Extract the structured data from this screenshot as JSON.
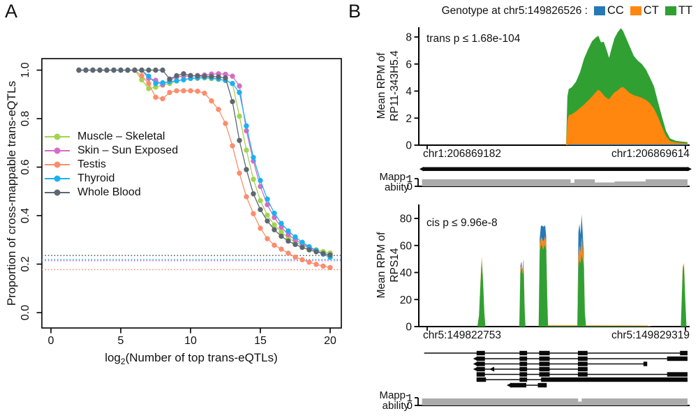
{
  "colors": {
    "muscle": "#a3d44b",
    "skin": "#d56cc6",
    "testis": "#fb8d6d",
    "thyroid": "#1bb1f1",
    "whole_blood": "#5d6770",
    "cc": "#2779b5",
    "ct": "#ff870f",
    "tt": "#30a033",
    "mappability": "#ababab",
    "axis": "#000000"
  },
  "panel_a": {
    "label": "A",
    "ylabel": "Proportion of cross-mappable trans-eQTLs",
    "xlabel": {
      "prefix": "log",
      "sub": "2",
      "suffix": "(Number of top trans-eQTLs)"
    },
    "xticks": [
      "0",
      "5",
      "10",
      "15",
      "20"
    ],
    "yticks": [
      "0.0",
      "0.2",
      "0.4",
      "0.6",
      "0.8",
      "1.0"
    ],
    "legend": [
      {
        "key": "muscle",
        "label": "Muscle – Skeletal"
      },
      {
        "key": "skin",
        "label": "Skin – Sun Exposed"
      },
      {
        "key": "testis",
        "label": "Testis"
      },
      {
        "key": "thyroid",
        "label": "Thyroid"
      },
      {
        "key": "whole_blood",
        "label": "Whole Blood"
      }
    ]
  },
  "panel_b": {
    "label": "B",
    "genotype_legend": {
      "title": "Genotype at chr5:149826526 :",
      "items": [
        {
          "key": "cc",
          "label": "CC"
        },
        {
          "key": "ct",
          "label": "CT"
        },
        {
          "key": "tt",
          "label": "TT"
        }
      ]
    },
    "trans": {
      "annotation": "trans p ≤ 1.68e-104",
      "ylabel": [
        "Mean RPM of",
        "RP11-343H5.4"
      ],
      "yticks": [
        "0",
        "2",
        "4",
        "6",
        "8"
      ],
      "region_start": "chr1:206869182",
      "region_end": "chr1:206869614"
    },
    "mapp1": {
      "label": [
        "Mapp-",
        "abiity"
      ],
      "ticks": [
        "1",
        "0"
      ]
    },
    "cis": {
      "annotation": "cis p ≤ 9.96e-8",
      "ylabel": [
        "Mean RPM of",
        "RPS14"
      ],
      "yticks": [
        "0",
        "20",
        "40",
        "60",
        "80"
      ],
      "region_start": "chr5:149822753",
      "region_end": "chr5:149829319"
    },
    "mapp2": {
      "label": [
        "Mapp-",
        "ability"
      ],
      "ticks": [
        "1",
        "0"
      ]
    }
  },
  "chart_data": [
    {
      "type": "line",
      "panel": "A",
      "title": "",
      "xlabel": "log2(Number of top trans-eQTLs)",
      "ylabel": "Proportion of cross-mappable trans-eQTLs",
      "xlim": [
        -0.65,
        21
      ],
      "ylim": [
        0,
        1.05
      ],
      "xticks": [
        0,
        5,
        10,
        15,
        20
      ],
      "yticks": [
        0,
        0.2,
        0.4,
        0.6,
        0.8,
        1.0
      ],
      "grid": false,
      "legend_position": "left-middle",
      "x": [
        2,
        2.5,
        3,
        3.5,
        4,
        4.5,
        5,
        5.5,
        6,
        6.5,
        7,
        7.5,
        8,
        8.5,
        9,
        9.5,
        10,
        10.5,
        11,
        11.5,
        12,
        12.5,
        13,
        13.5,
        14,
        14.5,
        15,
        15.5,
        16,
        16.5,
        17,
        17.5,
        18,
        18.5,
        19,
        19.5,
        20
      ],
      "series": [
        {
          "name": "Muscle – Skeletal",
          "color_key": "muscle",
          "values": [
            1,
            1,
            1,
            1,
            1,
            1,
            1,
            1,
            1,
            0.96,
            0.924,
            0.93,
            0.938,
            0.945,
            0.955,
            0.962,
            0.965,
            0.966,
            0.968,
            0.965,
            0.962,
            0.958,
            0.945,
            0.81,
            0.67,
            0.55,
            0.462,
            0.402,
            0.362,
            0.332,
            0.308,
            0.291,
            0.278,
            0.268,
            0.259,
            0.252,
            0.246
          ],
          "dotted_baseline": 0.2355
        },
        {
          "name": "Skin – Sun Exposed",
          "color_key": "skin",
          "values": [
            1,
            1,
            1,
            1,
            1,
            1,
            1,
            1,
            1,
            1,
            0.966,
            0.958,
            0.94,
            0.957,
            0.972,
            0.975,
            0.975,
            0.978,
            0.98,
            0.984,
            0.985,
            0.983,
            0.975,
            0.935,
            0.75,
            0.625,
            0.52,
            0.445,
            0.392,
            0.352,
            0.322,
            0.3,
            0.284,
            0.268,
            0.254,
            0.241,
            0.229
          ],
          "dotted_baseline": 0.214
        },
        {
          "name": "Testis",
          "color_key": "testis",
          "values": [
            1,
            1,
            1,
            1,
            1,
            1,
            1,
            1,
            1,
            0.977,
            0.945,
            0.888,
            0.882,
            0.908,
            0.915,
            0.915,
            0.915,
            0.913,
            0.905,
            0.873,
            0.838,
            0.78,
            0.688,
            0.575,
            0.478,
            0.408,
            0.348,
            0.305,
            0.278,
            0.262,
            0.245,
            0.229,
            0.218,
            0.208,
            0.199,
            0.192,
            0.186
          ],
          "dotted_baseline": 0.1775
        },
        {
          "name": "Thyroid",
          "color_key": "thyroid",
          "values": [
            1,
            1,
            1,
            1,
            1,
            1,
            1,
            1,
            1,
            1,
            0.975,
            0.945,
            0.948,
            0.952,
            0.956,
            0.96,
            0.966,
            0.968,
            0.97,
            0.968,
            0.963,
            0.957,
            0.945,
            0.908,
            0.77,
            0.64,
            0.545,
            0.468,
            0.41,
            0.368,
            0.337,
            0.312,
            0.29,
            0.272,
            0.257,
            0.242,
            0.228
          ],
          "dotted_baseline": 0.219
        },
        {
          "name": "Whole Blood",
          "color_key": "whole_blood",
          "values": [
            1,
            1,
            1,
            1,
            1,
            1,
            1,
            1,
            1,
            1,
            1,
            1,
            1,
            0.963,
            0.977,
            0.985,
            0.978,
            0.976,
            0.975,
            0.974,
            0.972,
            0.968,
            0.87,
            0.71,
            0.59,
            0.49,
            0.425,
            0.378,
            0.342,
            0.315,
            0.295,
            0.281,
            0.269,
            0.259,
            0.251,
            0.244,
            0.238
          ],
          "dotted_baseline": 0.2355
        }
      ]
    },
    {
      "type": "area",
      "panel": "B-top",
      "title": "trans p ≤ 1.68e-104",
      "ylabel": "Mean RPM of RP11-343H5.4",
      "ylim": [
        0,
        8.8
      ],
      "yticks": [
        0,
        2,
        4,
        6,
        8
      ],
      "x_axis_labels": [
        "chr1:206869182",
        "chr1:206869614"
      ],
      "stack_note": "profile rows = [x_fraction_of_region, CT_height, total_height]; TT fills CT..total; CC is thin baseline",
      "cc_baseline": 0.06,
      "profile": [
        [
          0.548,
          0,
          0
        ],
        [
          0.553,
          1.8,
          3.6
        ],
        [
          0.558,
          2.2,
          4.15
        ],
        [
          0.57,
          2.3,
          4.3
        ],
        [
          0.585,
          2.5,
          4.7
        ],
        [
          0.6,
          2.75,
          5.4
        ],
        [
          0.615,
          3.0,
          6.4
        ],
        [
          0.63,
          3.3,
          7.1
        ],
        [
          0.645,
          3.6,
          7.7
        ],
        [
          0.658,
          3.9,
          7.95
        ],
        [
          0.668,
          4.1,
          8.1
        ],
        [
          0.678,
          3.95,
          7.6
        ],
        [
          0.688,
          3.7,
          7.65
        ],
        [
          0.698,
          3.5,
          7.1
        ],
        [
          0.708,
          3.4,
          6.45
        ],
        [
          0.718,
          3.65,
          7.2
        ],
        [
          0.728,
          3.9,
          7.9
        ],
        [
          0.74,
          4.05,
          8.35
        ],
        [
          0.752,
          4.25,
          8.65
        ],
        [
          0.76,
          4.3,
          8.45
        ],
        [
          0.772,
          4.1,
          7.9
        ],
        [
          0.785,
          3.85,
          7.3
        ],
        [
          0.8,
          3.7,
          6.6
        ],
        [
          0.815,
          3.6,
          6.25
        ],
        [
          0.83,
          3.5,
          6.0
        ],
        [
          0.845,
          3.35,
          5.6
        ],
        [
          0.86,
          3.1,
          5.0
        ],
        [
          0.875,
          2.7,
          4.35
        ],
        [
          0.89,
          2.1,
          3.2
        ],
        [
          0.905,
          1.35,
          2.1
        ],
        [
          0.92,
          0.65,
          1.05
        ],
        [
          0.935,
          0.3,
          0.5
        ],
        [
          0.955,
          0.2,
          0.33
        ],
        [
          0.975,
          0.16,
          0.27
        ],
        [
          1.0,
          0.13,
          0.22
        ]
      ],
      "gene_bar": {
        "span": [
          0.018,
          1.0
        ]
      },
      "mappability_segments": [
        [
          0.012,
          0.565,
          1
        ],
        [
          0.565,
          0.579,
          0.5
        ],
        [
          0.579,
          0.655,
          1
        ],
        [
          0.655,
          0.728,
          0.55
        ],
        [
          0.728,
          0.844,
          0.7
        ],
        [
          0.844,
          1.0,
          1
        ]
      ]
    },
    {
      "type": "area",
      "panel": "B-bottom",
      "title": "cis p ≤ 9.96e-8",
      "ylabel": "Mean RPM of RPS14",
      "ylim": [
        0,
        84
      ],
      "yticks": [
        0,
        20,
        40,
        60,
        80
      ],
      "x_axis_labels": [
        "chr5:149822753",
        "chr5:149829319"
      ],
      "stack_note": "profile rows = [x_fraction_of_region, TT, CT, CC] stacked bottom-to-top",
      "profile": [
        [
          0.218,
          0,
          0,
          0
        ],
        [
          0.224,
          8,
          0.5,
          0
        ],
        [
          0.229,
          30,
          1.5,
          0
        ],
        [
          0.234,
          50,
          2,
          0
        ],
        [
          0.239,
          34,
          1.5,
          0
        ],
        [
          0.244,
          10,
          0.5,
          0
        ],
        [
          0.248,
          0,
          0,
          0
        ],
        [
          0.374,
          0,
          0,
          0
        ],
        [
          0.378,
          40,
          3,
          2
        ],
        [
          0.382,
          44,
          2.5,
          1.5
        ],
        [
          0.386,
          39,
          2,
          1
        ],
        [
          0.39,
          44,
          3.5,
          2.5
        ],
        [
          0.394,
          12,
          1,
          0.5
        ],
        [
          0.397,
          0,
          0,
          0
        ],
        [
          0.446,
          0,
          0,
          0
        ],
        [
          0.45,
          56,
          4,
          5
        ],
        [
          0.454,
          60,
          5,
          9
        ],
        [
          0.458,
          61,
          5,
          9
        ],
        [
          0.462,
          57,
          6,
          11
        ],
        [
          0.466,
          59,
          5,
          10
        ],
        [
          0.47,
          61,
          6,
          8
        ],
        [
          0.474,
          57,
          5,
          5
        ],
        [
          0.478,
          20,
          2,
          1
        ],
        [
          0.481,
          0.5,
          0.5,
          0
        ],
        [
          0.59,
          0.5,
          0.5,
          0
        ],
        [
          0.594,
          44,
          8,
          18
        ],
        [
          0.598,
          50,
          10,
          16
        ],
        [
          0.602,
          47,
          8,
          13
        ],
        [
          0.606,
          54,
          12,
          17
        ],
        [
          0.61,
          50,
          8,
          11
        ],
        [
          0.614,
          45,
          5,
          4
        ],
        [
          0.618,
          10,
          1,
          0.5
        ],
        [
          0.622,
          0.5,
          0.4,
          0
        ],
        [
          0.85,
          0.4,
          0.4,
          0
        ],
        [
          0.87,
          0,
          0,
          0
        ],
        [
          0.975,
          0,
          0,
          0
        ],
        [
          0.982,
          42,
          2,
          0
        ],
        [
          0.987,
          45,
          2,
          0
        ],
        [
          0.992,
          18,
          1,
          0
        ],
        [
          0.996,
          0,
          0,
          0
        ]
      ],
      "gene_models": [
        {
          "line": [
            0.02,
            1.0
          ],
          "exons": [
            [
              0.215,
              0.246
            ],
            [
              0.375,
              0.403
            ],
            [
              0.448,
              0.487
            ],
            [
              0.592,
              0.628
            ],
            [
              0.972,
              1.0
            ]
          ]
        },
        {
          "line": [
            0.215,
            1.0
          ],
          "exons": [
            [
              0.215,
              0.246
            ],
            [
              0.375,
              0.403
            ],
            [
              0.448,
              0.487
            ],
            [
              0.592,
              0.628
            ],
            [
              0.924,
              1.0
            ]
          ],
          "arrow": true
        },
        {
          "line": [
            0.215,
            0.848
          ],
          "exons": [
            [
              0.215,
              0.246
            ],
            [
              0.375,
              0.403
            ],
            [
              0.448,
              0.487
            ],
            [
              0.592,
              0.628
            ],
            [
              0.836,
              0.85
            ]
          ],
          "arrow": true
        },
        {
          "line": [
            0.215,
            0.628
          ],
          "exons": [
            [
              0.215,
              0.246
            ],
            [
              0.375,
              0.403
            ],
            [
              0.448,
              0.487
            ],
            [
              0.592,
              0.628
            ]
          ],
          "arrow": true,
          "midarrow": 0.273
        },
        {
          "line": [
            0.215,
            1.0
          ],
          "exons": [
            [
              0.215,
              0.246
            ],
            [
              0.375,
              0.403
            ],
            [
              0.448,
              0.487
            ],
            [
              0.592,
              0.628
            ],
            [
              0.924,
              1.0
            ]
          ]
        },
        {
          "line": [
            0.215,
            1.0
          ],
          "exons": [
            [
              0.215,
              0.25
            ],
            [
              0.375,
              0.403
            ],
            [
              0.455,
              1.0
            ]
          ]
        },
        {
          "line": [
            0.34,
            0.476
          ],
          "exons": [
            [
              0.34,
              0.4
            ],
            [
              0.443,
              0.476
            ]
          ],
          "arrow": true
        }
      ],
      "mappability_segments": [
        [
          0.012,
          0.593,
          1
        ],
        [
          0.593,
          0.606,
          0.55
        ],
        [
          0.606,
          1.0,
          1
        ]
      ]
    }
  ]
}
